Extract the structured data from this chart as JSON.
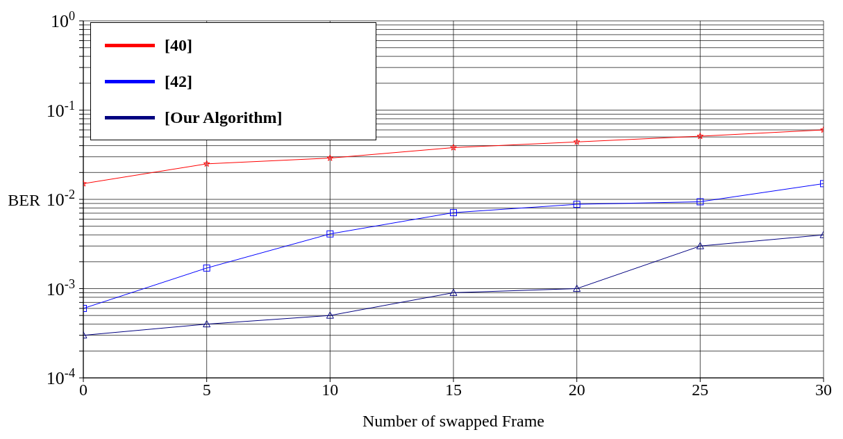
{
  "chart_data": {
    "type": "line",
    "xlabel": "Number of swapped Frame",
    "ylabel": "BER",
    "x": [
      0,
      5,
      10,
      15,
      20,
      25,
      30
    ],
    "series": [
      {
        "name": "[40]",
        "color": "#ff0000",
        "marker": "star",
        "values": [
          0.015,
          0.025,
          0.029,
          0.038,
          0.044,
          0.051,
          0.06
        ]
      },
      {
        "name": "[42]",
        "color": "#0000ff",
        "marker": "square",
        "values": [
          0.0006,
          0.0017,
          0.0041,
          0.0071,
          0.0088,
          0.0094,
          0.015
        ]
      },
      {
        "name": "[Our Algorithm]",
        "color": "#000080",
        "marker": "triangle",
        "values": [
          0.0003,
          0.0004,
          0.0005,
          0.0009,
          0.001,
          0.003,
          0.004
        ]
      }
    ],
    "log": "y",
    "xlim": [
      0,
      30
    ],
    "xticks": [
      0,
      5,
      10,
      15,
      20,
      25,
      30
    ],
    "ylim": [
      0.0001,
      1
    ],
    "yticks": [
      {
        "value": 0.0001,
        "label": "10$^{-4}$"
      },
      {
        "value": 0.0002,
        "label": null
      },
      {
        "value": 0.0003,
        "label": null
      },
      {
        "value": 0.0004,
        "label": null
      },
      {
        "value": 0.0005,
        "label": null
      },
      {
        "value": 0.0006,
        "label": null
      },
      {
        "value": 0.0007,
        "label": null
      },
      {
        "value": 0.0008,
        "label": null
      },
      {
        "value": 0.0009,
        "label": null
      },
      {
        "value": 0.001,
        "label": "10$^{-3}$"
      },
      {
        "value": 0.002,
        "label": null
      },
      {
        "value": 0.003,
        "label": null
      },
      {
        "value": 0.004,
        "label": null
      },
      {
        "value": 0.005,
        "label": null
      },
      {
        "value": 0.006,
        "label": null
      },
      {
        "value": 0.007,
        "label": null
      },
      {
        "value": 0.008,
        "label": null
      },
      {
        "value": 0.009,
        "label": null
      },
      {
        "value": 0.01,
        "label": "10$^{-2}$"
      },
      {
        "value": 0.02,
        "label": null
      },
      {
        "value": 0.03,
        "label": null
      },
      {
        "value": 0.04,
        "label": null
      },
      {
        "value": 0.05,
        "label": null
      },
      {
        "value": 0.06,
        "label": null
      },
      {
        "value": 0.07,
        "label": null
      },
      {
        "value": 0.08,
        "label": null
      },
      {
        "value": 0.09,
        "label": null
      },
      {
        "value": 0.1,
        "label": "10$^{-1}$"
      },
      {
        "value": 0.2,
        "label": null
      },
      {
        "value": 0.3,
        "label": null
      },
      {
        "value": 0.4,
        "label": null
      },
      {
        "value": 0.5,
        "label": null
      },
      {
        "value": 0.6,
        "label": null
      },
      {
        "value": 0.7,
        "label": null
      },
      {
        "value": 0.8,
        "label": null
      },
      {
        "value": 0.9,
        "label": null
      },
      {
        "value": 1,
        "label": "10$^{0}$"
      }
    ],
    "grid": true,
    "legend": "top left"
  }
}
